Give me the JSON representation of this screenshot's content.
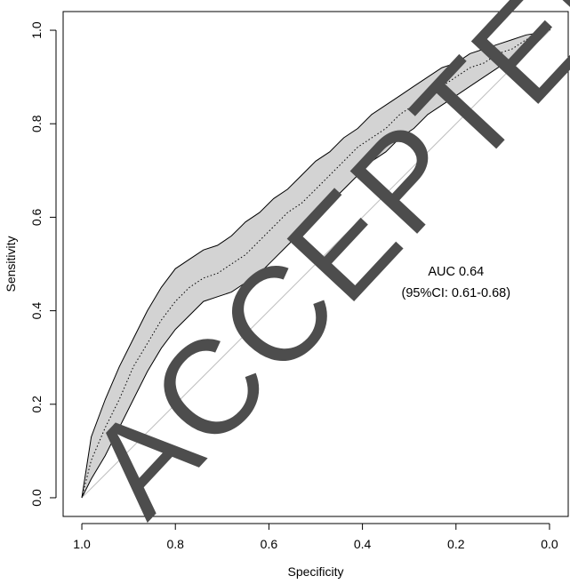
{
  "chart_data": {
    "type": "line",
    "title": "",
    "xlabel": "Specificity",
    "ylabel": "Sensitivity",
    "xlim": [
      1.04,
      -0.04
    ],
    "ylim": [
      -0.04,
      1.04
    ],
    "x_reversed": true,
    "x_ticks": [
      1.0,
      0.8,
      0.6,
      0.4,
      0.2,
      0.0
    ],
    "x_tick_labels": [
      "1.0",
      "0.8",
      "0.6",
      "0.4",
      "0.2",
      "0.0"
    ],
    "y_ticks": [
      0.0,
      0.2,
      0.4,
      0.6,
      0.8,
      1.0
    ],
    "y_tick_labels": [
      "0.0",
      "0.2",
      "0.4",
      "0.6",
      "0.8",
      "1.0"
    ],
    "grid": false,
    "diagonal": {
      "from": [
        1.0,
        0.0
      ],
      "to": [
        0.0,
        1.0
      ],
      "color": "#bfbfbf"
    },
    "roc_curve": {
      "style": "dotted",
      "color": "#000000",
      "specificity": [
        1.0,
        0.98,
        0.95,
        0.92,
        0.89,
        0.86,
        0.83,
        0.8,
        0.77,
        0.74,
        0.71,
        0.68,
        0.65,
        0.62,
        0.59,
        0.56,
        0.53,
        0.5,
        0.47,
        0.44,
        0.41,
        0.38,
        0.35,
        0.32,
        0.29,
        0.26,
        0.23,
        0.2,
        0.17,
        0.14,
        0.11,
        0.08,
        0.05,
        0.02,
        0.0
      ],
      "sensitivity": [
        0.0,
        0.08,
        0.15,
        0.21,
        0.28,
        0.33,
        0.38,
        0.42,
        0.45,
        0.47,
        0.48,
        0.5,
        0.52,
        0.55,
        0.58,
        0.61,
        0.63,
        0.66,
        0.69,
        0.72,
        0.75,
        0.77,
        0.79,
        0.82,
        0.84,
        0.86,
        0.88,
        0.9,
        0.92,
        0.93,
        0.95,
        0.96,
        0.98,
        0.99,
        1.0
      ]
    },
    "ci_band": {
      "fill": "#d3d3d3",
      "stroke": "#000000",
      "specificity": [
        1.0,
        0.98,
        0.95,
        0.92,
        0.89,
        0.86,
        0.83,
        0.8,
        0.77,
        0.74,
        0.71,
        0.68,
        0.65,
        0.62,
        0.59,
        0.56,
        0.53,
        0.5,
        0.47,
        0.44,
        0.41,
        0.38,
        0.35,
        0.32,
        0.29,
        0.26,
        0.23,
        0.2,
        0.17,
        0.14,
        0.11,
        0.08,
        0.05,
        0.02,
        0.0
      ],
      "upper": [
        0.0,
        0.13,
        0.21,
        0.28,
        0.34,
        0.4,
        0.45,
        0.49,
        0.51,
        0.53,
        0.54,
        0.56,
        0.59,
        0.61,
        0.64,
        0.66,
        0.69,
        0.72,
        0.74,
        0.77,
        0.79,
        0.82,
        0.84,
        0.86,
        0.88,
        0.9,
        0.92,
        0.93,
        0.95,
        0.96,
        0.97,
        0.98,
        0.99,
        0.995,
        1.0
      ],
      "lower": [
        0.0,
        0.04,
        0.09,
        0.15,
        0.21,
        0.27,
        0.32,
        0.36,
        0.39,
        0.42,
        0.43,
        0.44,
        0.46,
        0.48,
        0.51,
        0.54,
        0.57,
        0.6,
        0.63,
        0.66,
        0.69,
        0.72,
        0.74,
        0.77,
        0.79,
        0.82,
        0.84,
        0.86,
        0.88,
        0.9,
        0.92,
        0.94,
        0.96,
        0.98,
        1.0
      ]
    },
    "annotations": [
      {
        "text": "AUC 0.64",
        "x": 0.2,
        "y": 0.475,
        "anchor": "middle"
      },
      {
        "text": "(95%CI: 0.61-0.68)",
        "x": 0.2,
        "y": 0.43,
        "anchor": "middle"
      }
    ]
  },
  "watermark": {
    "text": "ACCEPTED",
    "color": "#4d4d4d"
  }
}
